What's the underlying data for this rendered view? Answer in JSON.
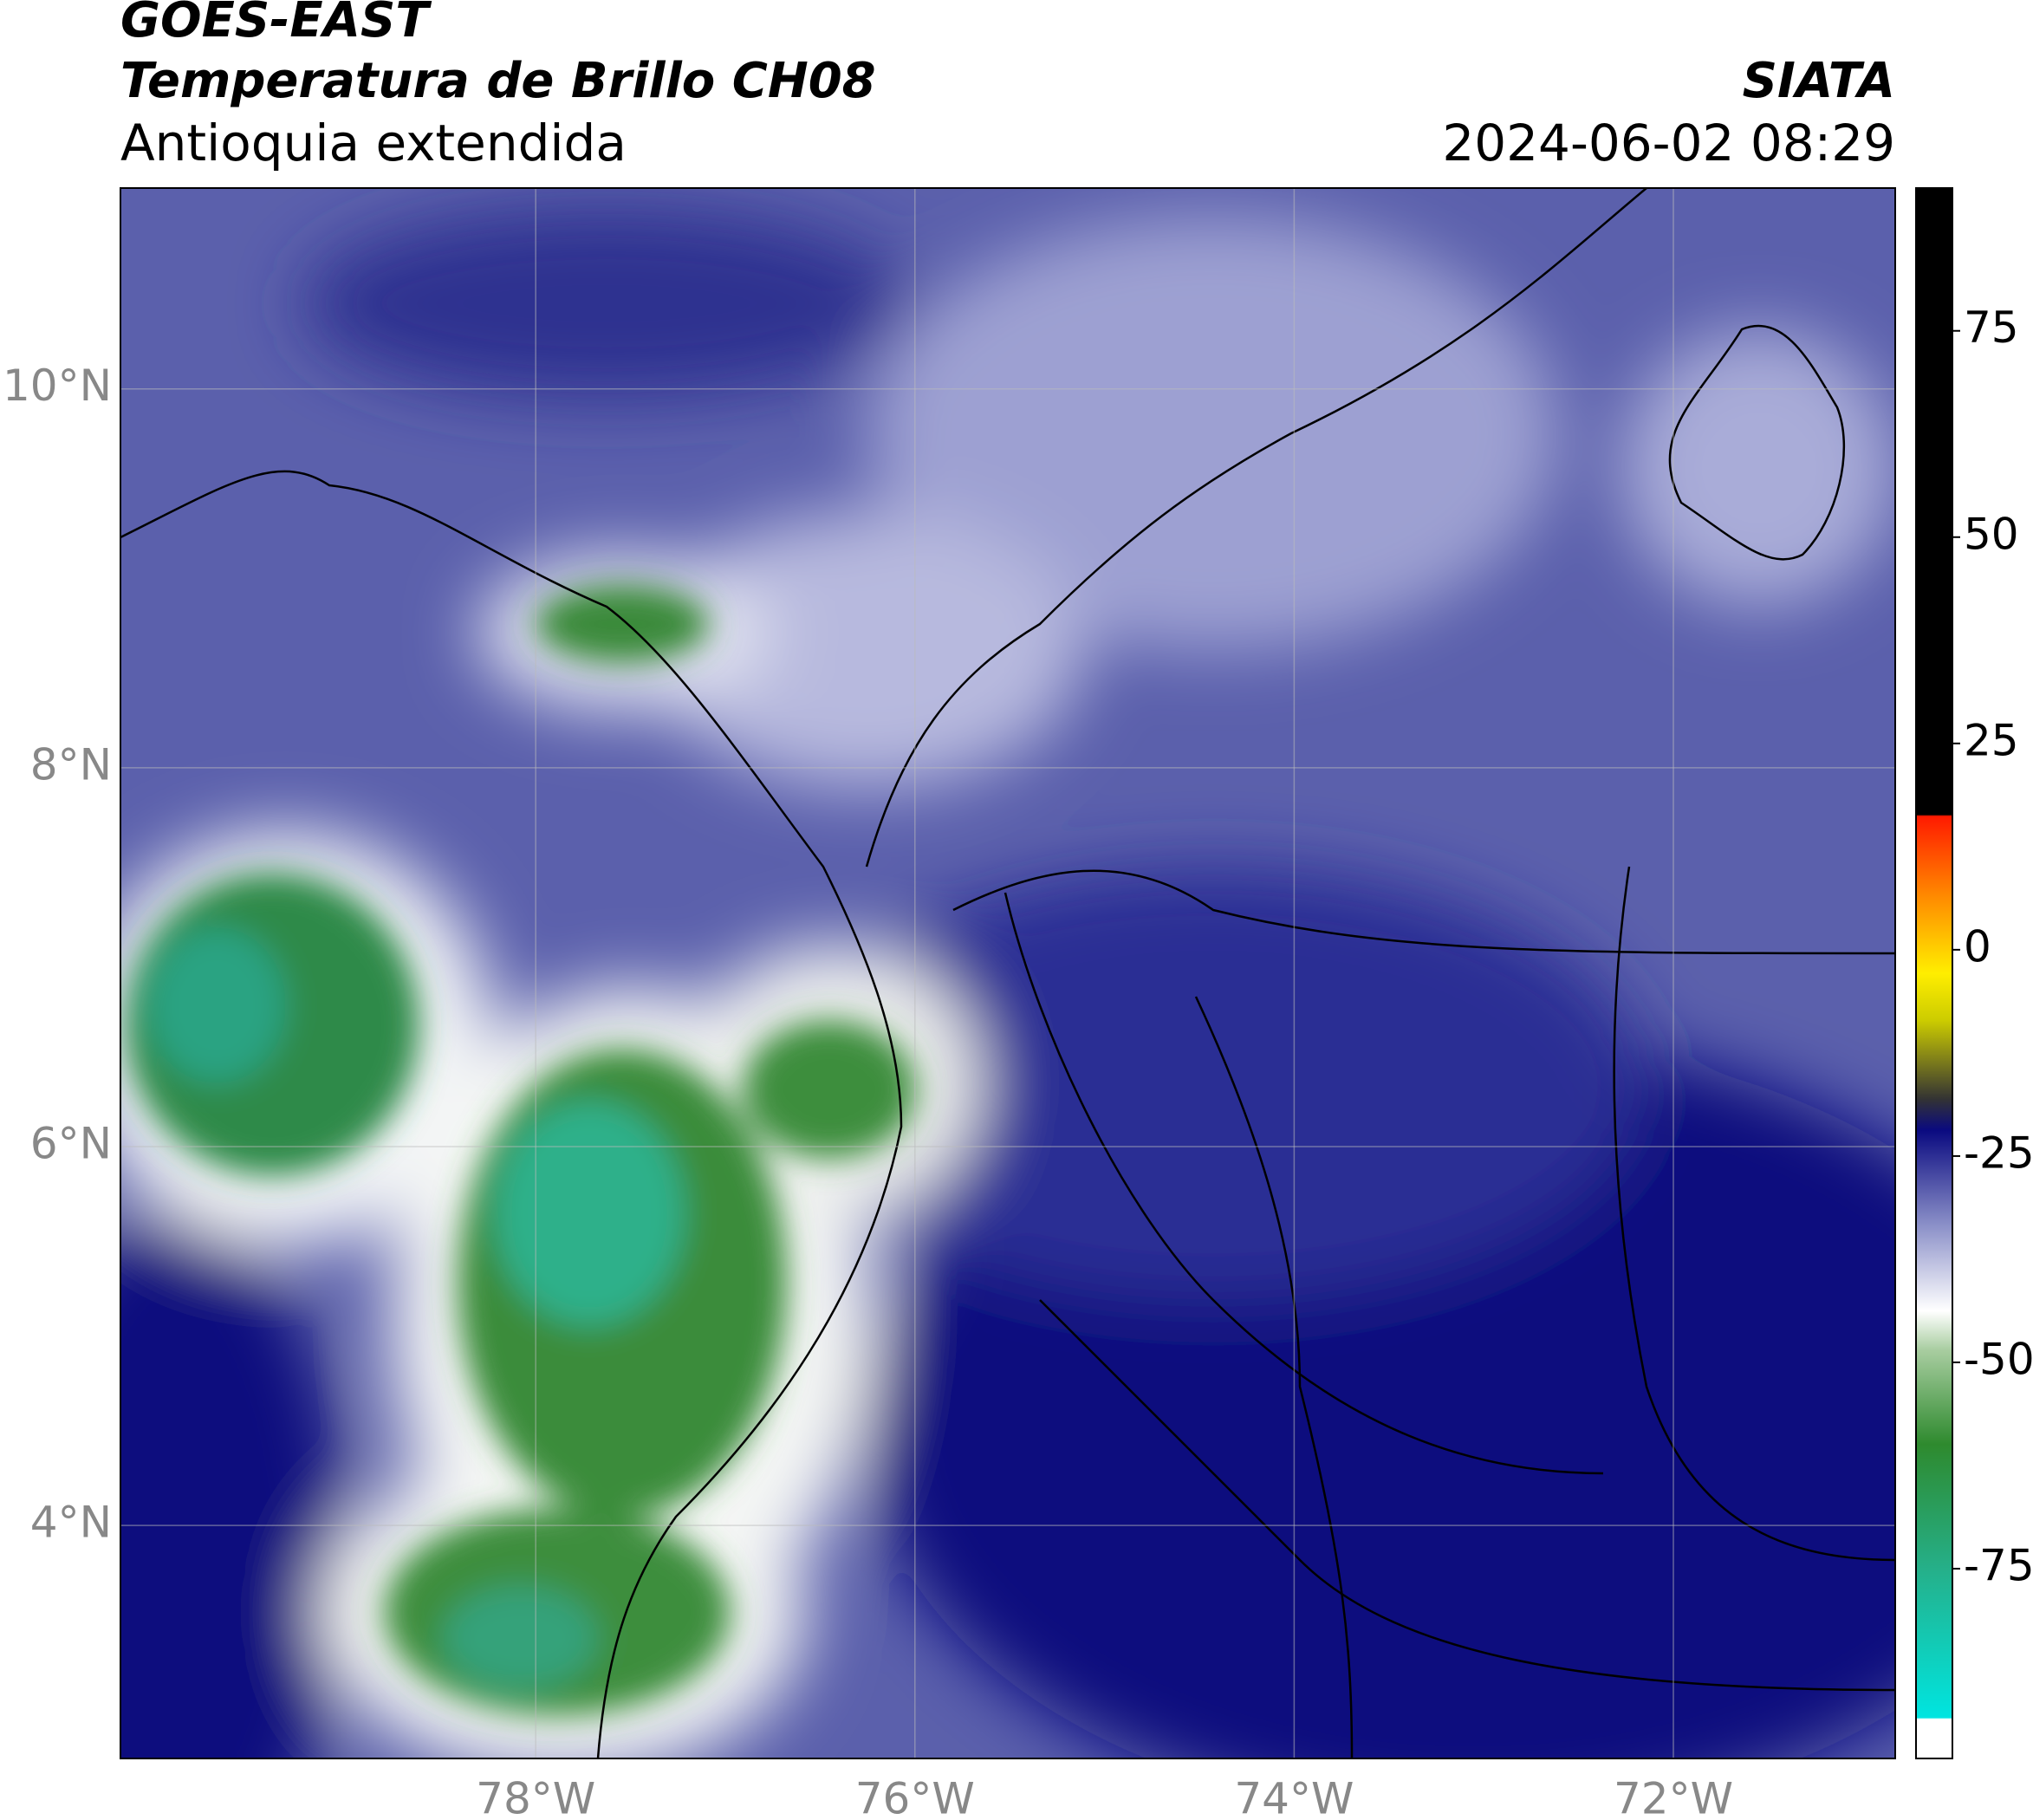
{
  "header": {
    "source": "GOES-EAST",
    "title": "Temperatura de Brillo CH08",
    "region": "Antioquia extendida",
    "agency": "SIATA",
    "datetime": "2024-06-02 08:29"
  },
  "map": {
    "type": "raster",
    "xlim": [
      -80.19,
      -70.83
    ],
    "ylim": [
      2.77,
      11.06
    ],
    "xticks": [
      {
        "value": -78,
        "label": "78°W"
      },
      {
        "value": -76,
        "label": "76°W"
      },
      {
        "value": -74,
        "label": "74°W"
      },
      {
        "value": -72,
        "label": "72°W"
      }
    ],
    "yticks": [
      {
        "value": 4,
        "label": "4°N"
      },
      {
        "value": 6,
        "label": "6°N"
      },
      {
        "value": 8,
        "label": "8°N"
      },
      {
        "value": 10,
        "label": "10°N"
      }
    ],
    "grid": true
  },
  "colorbar": {
    "lim": [
      -98,
      92.3
    ],
    "ticks": [
      75,
      50,
      25,
      0,
      -25,
      -50,
      -75
    ]
  }
}
